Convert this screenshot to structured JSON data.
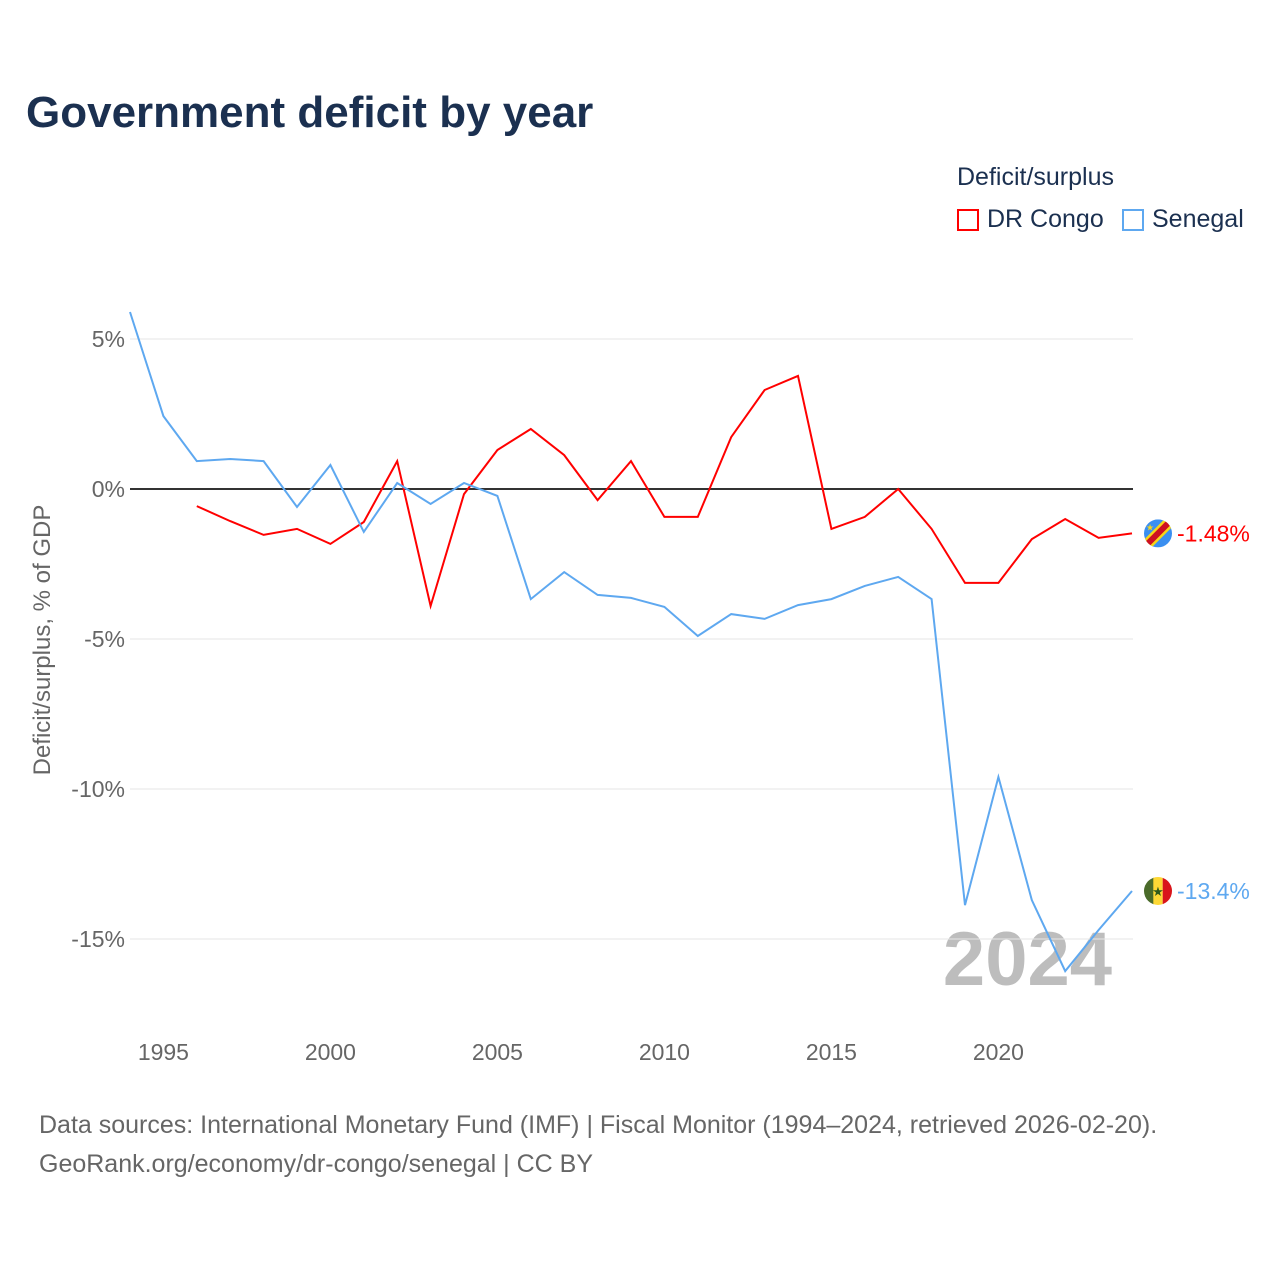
{
  "title": "Government deficit by year",
  "legend": {
    "title": "Deficit/surplus",
    "entries": [
      {
        "name": "DR Congo",
        "color": "#ff0000"
      },
      {
        "name": "Senegal",
        "color": "#5ea8f0"
      }
    ]
  },
  "footer": {
    "line1": "Data sources: International Monetary Fund (IMF) | Fiscal Monitor (1994–2024, retrieved 2026-02-20).",
    "line2": "GeoRank.org/economy/dr-congo/senegal | CC BY"
  },
  "chart_data": {
    "type": "line",
    "title": "Government deficit by year",
    "ylabel": "Deficit/surplus, % of GDP",
    "xlabel": "",
    "ylim": [
      -17,
      6
    ],
    "xlim": [
      1994,
      2024
    ],
    "yticks": [
      {
        "v": 5,
        "label": "5%"
      },
      {
        "v": 0,
        "label": "0%"
      },
      {
        "v": -5,
        "label": "-5%"
      },
      {
        "v": -10,
        "label": "-10%"
      },
      {
        "v": -15,
        "label": "-15%"
      }
    ],
    "xticks": [
      {
        "v": 1995,
        "label": "1995"
      },
      {
        "v": 2000,
        "label": "2000"
      },
      {
        "v": 2005,
        "label": "2005"
      },
      {
        "v": 2010,
        "label": "2010"
      },
      {
        "v": 2015,
        "label": "2015"
      },
      {
        "v": 2020,
        "label": "2020"
      }
    ],
    "watermark_year": "2024",
    "series": [
      {
        "name": "DR Congo",
        "color": "#ff0000",
        "end_label": "-1.48%",
        "x": [
          1996,
          1997,
          1998,
          1999,
          2000,
          2001,
          2002,
          2003,
          2004,
          2005,
          2006,
          2007,
          2008,
          2009,
          2010,
          2011,
          2012,
          2013,
          2014,
          2015,
          2016,
          2017,
          2018,
          2019,
          2020,
          2021,
          2022,
          2023,
          2024
        ],
        "values": [
          -0.57,
          -1.07,
          -1.53,
          -1.33,
          -1.83,
          -1.1,
          0.93,
          -3.9,
          -0.17,
          1.3,
          2.0,
          1.13,
          -0.37,
          0.93,
          -0.93,
          -0.93,
          1.73,
          3.3,
          3.77,
          -1.33,
          -0.93,
          0,
          -1.33,
          -3.13,
          -3.13,
          -1.67,
          -1.0,
          -1.63,
          -1.48
        ]
      },
      {
        "name": "Senegal",
        "color": "#5ea8f0",
        "end_label": "-13.4%",
        "x": [
          1994,
          1995,
          1996,
          1997,
          1998,
          1999,
          2000,
          2001,
          2002,
          2003,
          2004,
          2005,
          2006,
          2007,
          2008,
          2009,
          2010,
          2011,
          2012,
          2013,
          2014,
          2015,
          2016,
          2017,
          2018,
          2019,
          2020,
          2021,
          2022,
          2023,
          2024
        ],
        "values": [
          5.9,
          2.43,
          0.93,
          1.0,
          0.93,
          -0.6,
          0.8,
          -1.43,
          0.2,
          -0.5,
          0.2,
          -0.23,
          -3.67,
          -2.77,
          -3.53,
          -3.63,
          -3.93,
          -4.9,
          -4.17,
          -4.33,
          -3.87,
          -3.67,
          -3.23,
          -2.93,
          -3.67,
          -13.87,
          -9.6,
          -13.7,
          -16.07,
          -14.7,
          -13.4
        ]
      }
    ]
  }
}
